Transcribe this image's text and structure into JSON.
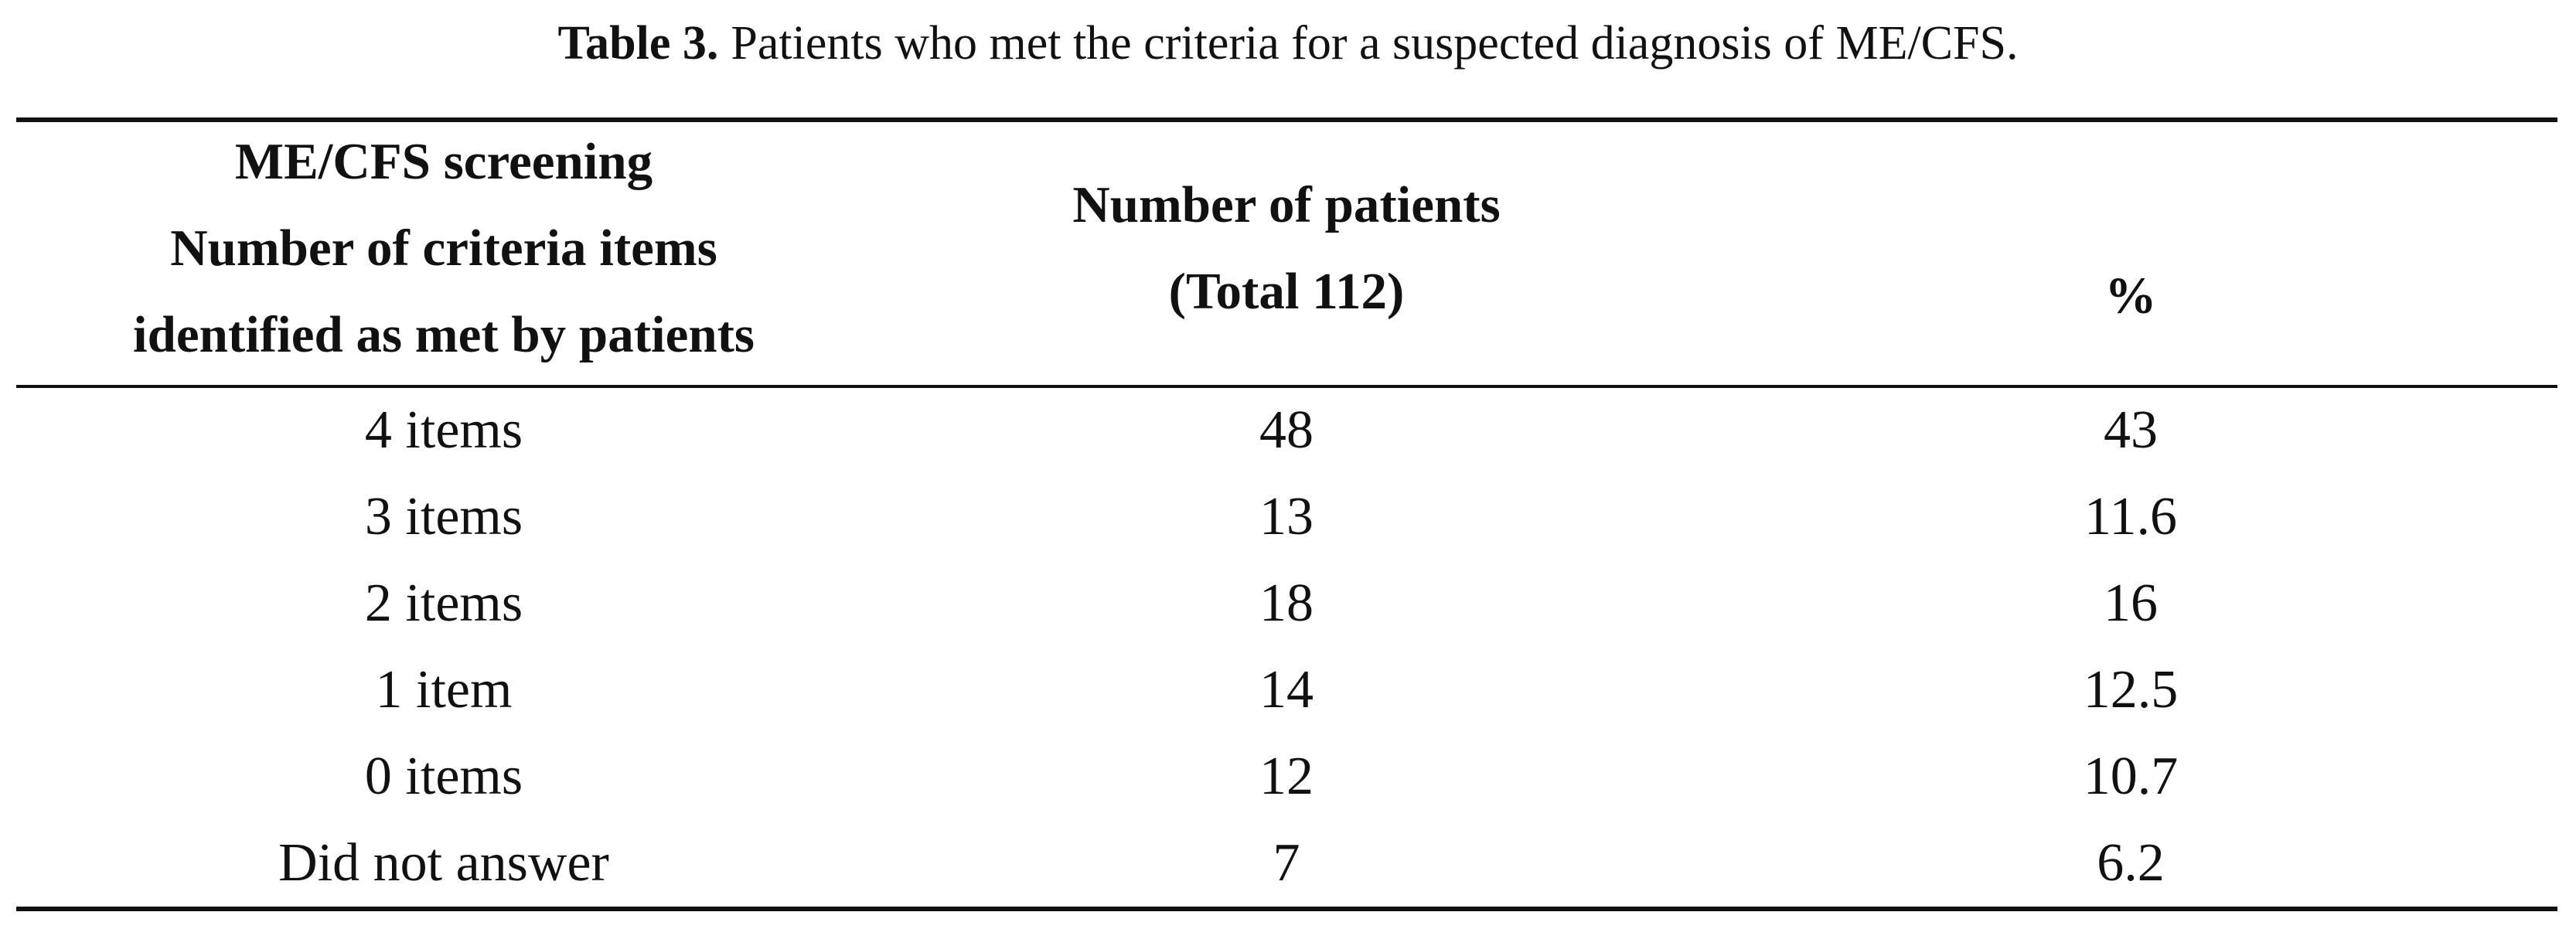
{
  "caption": {
    "label": "Table 3.",
    "text": "Patients who met the criteria for a suspected diagnosis of ME/CFS."
  },
  "table": {
    "header": [
      [
        "ME/CFS screening",
        "Number of criteria items",
        "identified as met by patients"
      ],
      [
        "Number of patients",
        "(Total 112)"
      ],
      [
        "%"
      ]
    ],
    "rows": [
      [
        "4 items",
        48,
        43
      ],
      [
        "3 items",
        13,
        11.6
      ],
      [
        "2 items",
        18,
        16
      ],
      [
        "1 item",
        14,
        12.5
      ],
      [
        "0 items",
        12,
        10.7
      ],
      [
        "Did not answer",
        7,
        6.2
      ]
    ]
  }
}
